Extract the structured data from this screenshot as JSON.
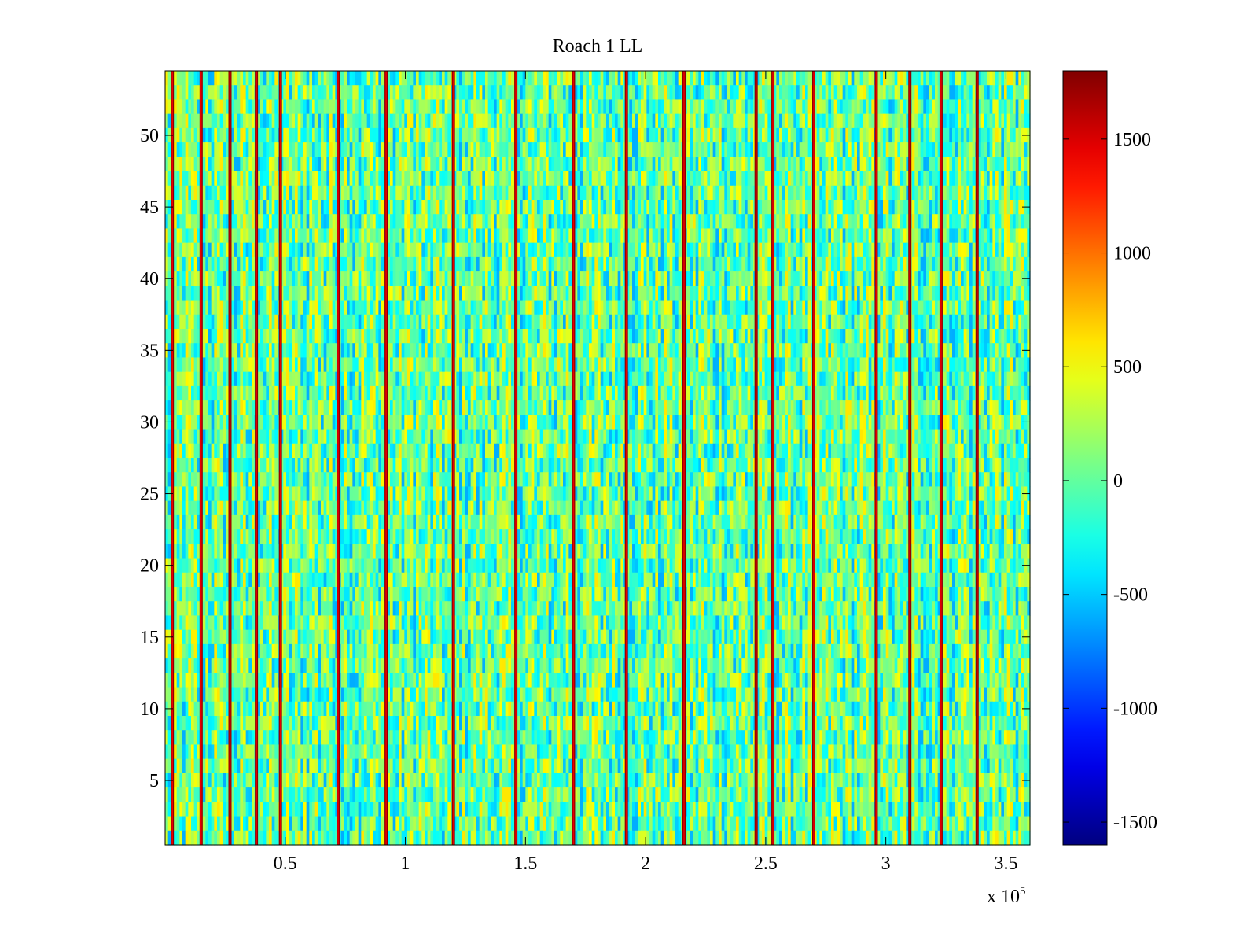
{
  "chart_data": {
    "type": "heatmap",
    "title": "Roach 1 LL",
    "xlabel": "",
    "ylabel": "",
    "x_exponent_label": "x 10",
    "x_exponent": "5",
    "xlim": [
      0,
      3.6
    ],
    "ylim": [
      0.5,
      54.5
    ],
    "x_ticks": [
      0.5,
      1,
      1.5,
      2,
      2.5,
      3,
      3.5
    ],
    "x_tick_labels": [
      "0.5",
      "1",
      "1.5",
      "2",
      "2.5",
      "3",
      "3.5"
    ],
    "y_ticks": [
      5,
      10,
      15,
      20,
      25,
      30,
      35,
      40,
      45,
      50
    ],
    "y_tick_labels": [
      "5",
      "10",
      "15",
      "20",
      "25",
      "30",
      "35",
      "40",
      "45",
      "50"
    ],
    "rows": 54,
    "colormap": "jet",
    "clim": [
      -1600,
      1800
    ],
    "colorbar_ticks": [
      1500,
      1000,
      500,
      0,
      -500,
      -1000,
      -1500
    ],
    "colorbar_tick_labels": [
      "1500",
      "1000",
      "500",
      "0",
      "-500",
      "-1000",
      "-1500"
    ],
    "colorbar_location": "right",
    "background_value_range": [
      -600,
      600
    ],
    "high_value_columns_x": [
      0.03,
      0.15,
      0.27,
      0.38,
      0.48,
      0.72,
      0.92,
      1.2,
      1.46,
      1.7,
      1.92,
      2.16,
      2.46,
      2.53,
      2.7,
      2.96,
      3.1,
      3.23,
      3.38
    ]
  }
}
